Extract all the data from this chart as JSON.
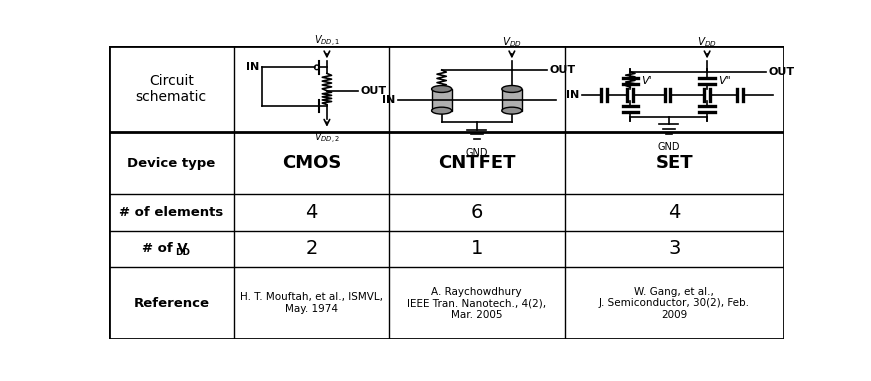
{
  "background_color": "#ffffff",
  "line_color": "#000000",
  "text_color": "#000000",
  "col_dividers": [
    0.185,
    0.415,
    0.675
  ],
  "row_dividers": [
    0.295,
    0.505,
    0.63,
    0.755
  ],
  "device_type": [
    "CMOS",
    "CNTFET",
    "SET"
  ],
  "num_elements": [
    "4",
    "6",
    "4"
  ],
  "num_vdd": [
    "2",
    "1",
    "3"
  ],
  "references": [
    "H. T. Mouftah, et al., ISMVL,\nMay. 1974",
    "A. Raychowdhury\nIEEE Tran. Nanotech., 4(2),\nMar. 2005",
    "W. Gang, et al.,\nJ. Semiconductor, 30(2), Feb.\n2009"
  ]
}
